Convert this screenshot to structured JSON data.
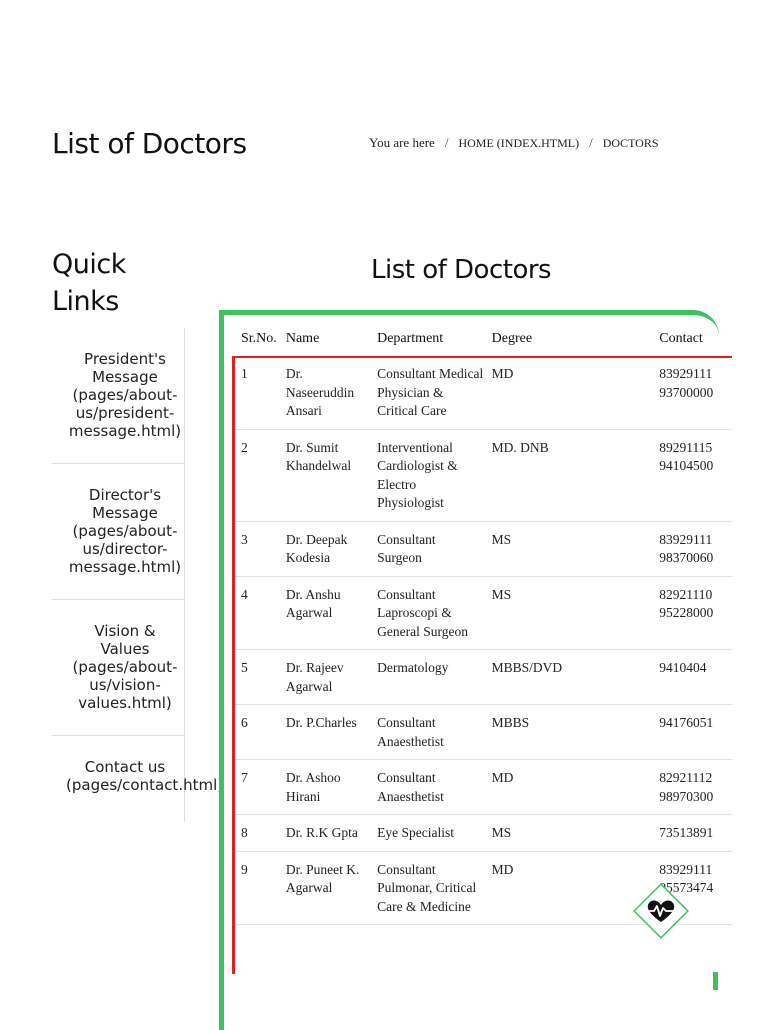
{
  "header": {
    "title": "List of Doctors",
    "breadcrumb": {
      "prefix": "You are here",
      "separator": "/",
      "home": "HOME (INDEX.HTML)",
      "current": "DOCTORS"
    }
  },
  "sidebar": {
    "title": "Quick Links",
    "items": [
      {
        "label": "President's\nMessage\n(pages/about-\nus/president-\nmessage.html)"
      },
      {
        "label": "Director's\nMessage\n(pages/about-\nus/director-\nmessage.html)"
      },
      {
        "label": "Vision &\nValues\n(pages/about-\nus/vision-\nvalues.html)"
      },
      {
        "label": "Contact us\n(pages/contact.html)"
      }
    ]
  },
  "main": {
    "title": "List of Doctors",
    "table": {
      "columns": [
        "Sr.No.",
        "Name",
        "Department",
        "Degree",
        "Contact"
      ],
      "rows": [
        {
          "sr": "1",
          "name": "Dr. Naseeruddin Ansari",
          "dept": "Consultant Medical Physician & Critical Care",
          "degree": "MD",
          "contact": "83929111\n93700000"
        },
        {
          "sr": "2",
          "name": "Dr. Sumit Khandelwal",
          "dept": "Interventional Cardiologist & Electro Physiologist",
          "degree": "MD. DNB",
          "contact": "89291115\n94104500"
        },
        {
          "sr": "3",
          "name": "Dr. Deepak Kodesia",
          "dept": "Consultant Surgeon",
          "degree": "MS",
          "contact": "83929111\n98370060"
        },
        {
          "sr": "4",
          "name": "Dr. Anshu Agarwal",
          "dept": "Consultant Laproscopi & General Surgeon",
          "degree": "MS",
          "contact": "82921110\n95228000"
        },
        {
          "sr": "5",
          "name": "Dr. Rajeev Agarwal",
          "dept": "Dermatology",
          "degree": "MBBS/DVD",
          "contact": "9410404"
        },
        {
          "sr": "6",
          "name": "Dr. P.Charles",
          "dept": "Consultant Anaesthetist",
          "degree": "MBBS",
          "contact": "94176051"
        },
        {
          "sr": "7",
          "name": "Dr. Ashoo Hirani",
          "dept": "Consultant Anaesthetist",
          "degree": "MD",
          "contact": "82921112\n98970300"
        },
        {
          "sr": "8",
          "name": "Dr. R.K Gpta",
          "dept": "Eye Specialist",
          "degree": "MS",
          "contact": "73513891"
        },
        {
          "sr": "9",
          "name": "Dr. Puneet K. Agarwal",
          "dept": "Consultant Pulmonar, Critical Care & Medicine",
          "degree": "MD",
          "contact": "83929111\n95573474"
        }
      ]
    }
  },
  "colors": {
    "accent_green": "#3cc35c",
    "accent_red": "#e02020"
  },
  "icons": {
    "logo": "heart-pulse-icon"
  }
}
